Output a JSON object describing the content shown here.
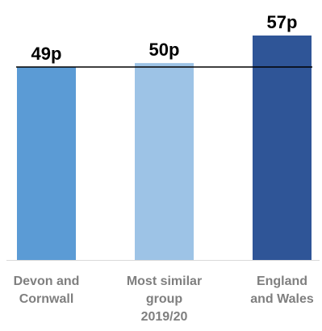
{
  "chart_data": {
    "type": "bar",
    "categories": [
      "Devon and Cornwall",
      "Most similar group 2019/20",
      "England and Wales"
    ],
    "category_lines": [
      [
        "Devon and",
        "Cornwall"
      ],
      [
        "Most similar",
        "group",
        "2019/20"
      ],
      [
        "England",
        "and Wales"
      ]
    ],
    "values": [
      49,
      50,
      57
    ],
    "data_labels": [
      "49p",
      "50p",
      "57p"
    ],
    "bar_colors": [
      "#5b9bd5",
      "#9dc3e6",
      "#2f5597"
    ],
    "reference_line": 49,
    "axis_color": "#d9d9d9",
    "reference_line_color": "#000000",
    "label_color": "#7f7f7f",
    "title": "",
    "xlabel": "",
    "ylabel": "",
    "ylim": [
      0,
      57
    ],
    "grid": false,
    "legend": "none"
  }
}
